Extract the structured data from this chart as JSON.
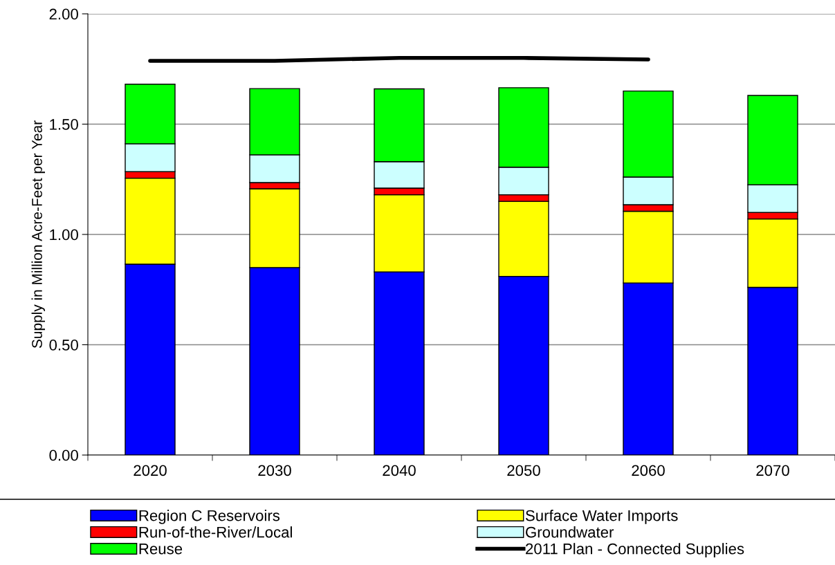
{
  "chart_data": {
    "type": "bar",
    "stacked": true,
    "ylabel": "Supply in Million Acre-Feet per Year",
    "categories": [
      "2020",
      "2030",
      "2040",
      "2050",
      "2060",
      "2070"
    ],
    "ylim": [
      0,
      2
    ],
    "yticks": [
      {
        "value": 0,
        "label": "0.00"
      },
      {
        "value": 0.5,
        "label": "0.50"
      },
      {
        "value": 1,
        "label": "1.00"
      },
      {
        "value": 1.5,
        "label": "1.50"
      },
      {
        "value": 2,
        "label": "2.00"
      }
    ],
    "grid": "y",
    "legend": "bottom",
    "series": [
      {
        "name": "Region C Reservoirs",
        "color": "#0000ff",
        "values": [
          0.865,
          0.85,
          0.83,
          0.81,
          0.78,
          0.76
        ]
      },
      {
        "name": "Surface Water Imports",
        "color": "#ffff00",
        "values": [
          0.39,
          0.357,
          0.35,
          0.34,
          0.325,
          0.31
        ]
      },
      {
        "name": "Run-of-the-River/Local",
        "color": "#ff0000",
        "values": [
          0.03,
          0.028,
          0.03,
          0.03,
          0.03,
          0.03
        ]
      },
      {
        "name": "Groundwater",
        "color": "#ccffff",
        "values": [
          0.126,
          0.126,
          0.12,
          0.125,
          0.125,
          0.125
        ]
      },
      {
        "name": "Reuse",
        "color": "#00ff00",
        "values": [
          0.27,
          0.3,
          0.33,
          0.36,
          0.39,
          0.405
        ]
      },
      {
        "name": "2011 Plan - Connected Supplies",
        "type": "line",
        "color": "#000000",
        "values": [
          1.787,
          1.787,
          1.8,
          1.8,
          1.793,
          null
        ]
      }
    ]
  }
}
